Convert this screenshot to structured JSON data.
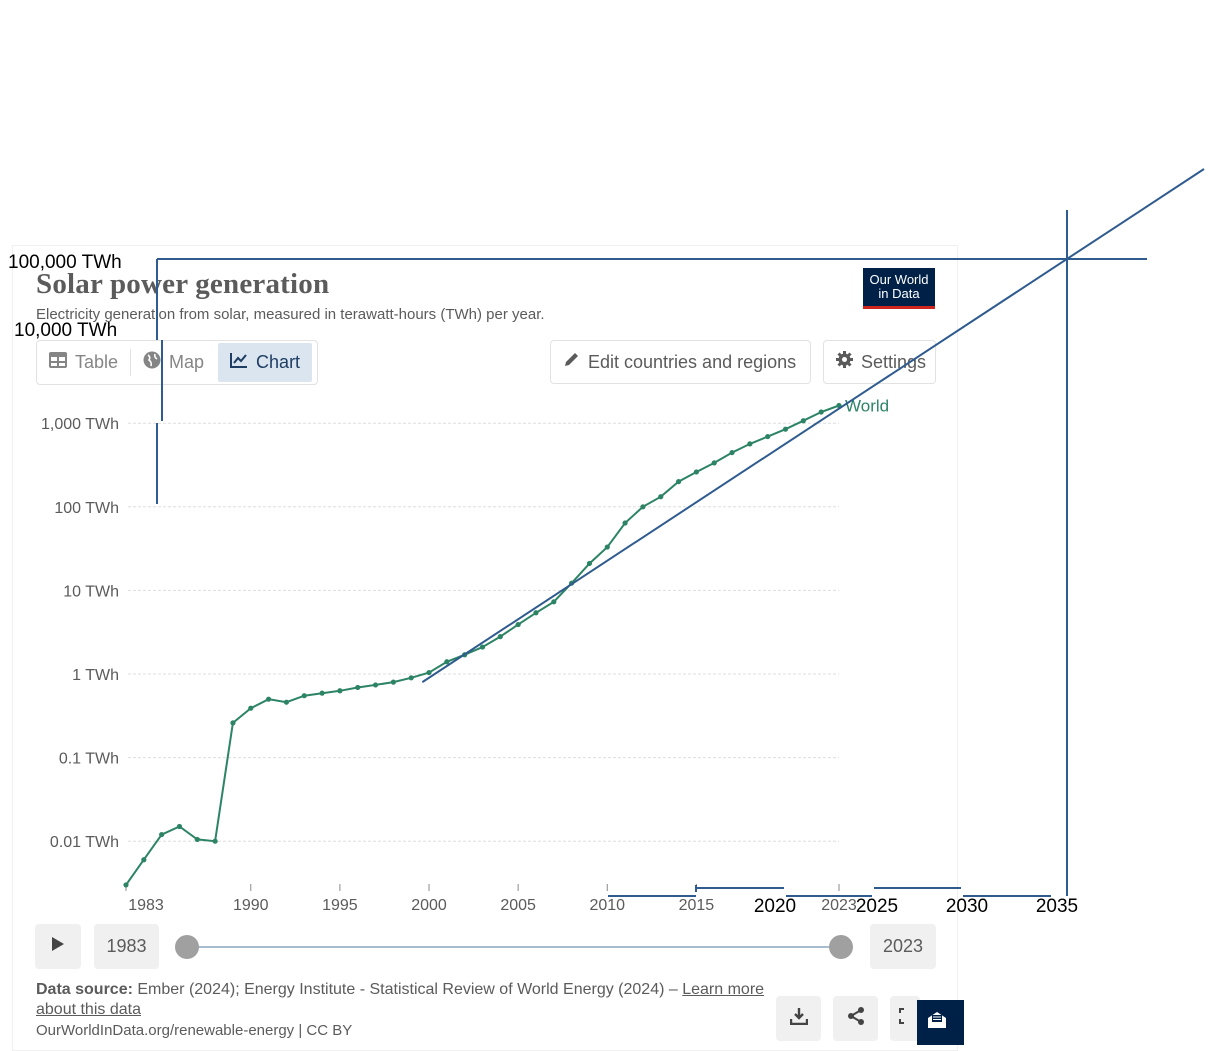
{
  "header": {
    "title": "Solar power generation",
    "subtitle": "Electricity generation from solar, measured in terawatt-hours (TWh) per year.",
    "logo_line1": "Our World",
    "logo_line2": "in Data"
  },
  "tabs": [
    {
      "label": "Table",
      "icon": "table-icon"
    },
    {
      "label": "Map",
      "icon": "globe-icon"
    },
    {
      "label": "Chart",
      "icon": "line-chart-icon",
      "active": true
    }
  ],
  "toolbar": {
    "edit_label": "Edit countries and regions",
    "settings_label": "Settings"
  },
  "timeline": {
    "start_year": "1983",
    "end_year": "2023"
  },
  "footer": {
    "source_label": "Data source:",
    "source_text": "Ember (2024); Energy Institute - Statistical Review of World Energy (2024) –",
    "learn_more": "Learn more about this data",
    "license": "OurWorldInData.org/renewable-energy | CC BY"
  },
  "colors": {
    "series": "#2c8465",
    "overlay": "#2f5b8f",
    "brand": "#002147",
    "grid": "#dddddd"
  },
  "chart_data": {
    "type": "line",
    "y_scale": "log",
    "ylim": [
      0.002,
      1300
    ],
    "xlim": [
      1983,
      2023
    ],
    "y_ticks": [
      {
        "value": 0.01,
        "label": "0.01 TWh"
      },
      {
        "value": 0.1,
        "label": "0.1 TWh"
      },
      {
        "value": 1,
        "label": "1 TWh"
      },
      {
        "value": 10,
        "label": "10 TWh"
      },
      {
        "value": 100,
        "label": "100 TWh"
      },
      {
        "value": 1000,
        "label": "1,000 TWh"
      }
    ],
    "x_ticks": [
      "1983",
      "1990",
      "1995",
      "2000",
      "2005",
      "2010",
      "2015",
      "2023"
    ],
    "series": [
      {
        "name": "World",
        "x": [
          1983,
          1984,
          1985,
          1986,
          1987,
          1988,
          1989,
          1990,
          1991,
          1992,
          1993,
          1994,
          1995,
          1996,
          1997,
          1998,
          1999,
          2000,
          2001,
          2002,
          2003,
          2004,
          2005,
          2006,
          2007,
          2008,
          2009,
          2010,
          2011,
          2012,
          2013,
          2014,
          2015,
          2016,
          2017,
          2018,
          2019,
          2020,
          2021,
          2022,
          2023
        ],
        "values": [
          0.003,
          0.006,
          0.012,
          0.015,
          0.0105,
          0.01,
          0.26,
          0.39,
          0.5,
          0.46,
          0.55,
          0.59,
          0.63,
          0.69,
          0.74,
          0.8,
          0.9,
          1.04,
          1.4,
          1.7,
          2.1,
          2.8,
          3.9,
          5.4,
          7.3,
          12.2,
          21,
          33,
          64,
          100,
          132,
          200,
          261,
          335,
          445,
          566,
          692,
          848,
          1070,
          1360,
          1630
        ]
      }
    ],
    "overlay": {
      "y_ticks": [
        {
          "value": 10000,
          "label": "10,000 TWh"
        },
        {
          "value": 100000,
          "label": "100,000 TWh"
        }
      ],
      "x_ticks": [
        "2020",
        "2025",
        "2030",
        "2035"
      ],
      "trend_line": {
        "x": [
          1999.6,
          2035
        ],
        "values": [
          0.8,
          100000
        ]
      }
    }
  }
}
